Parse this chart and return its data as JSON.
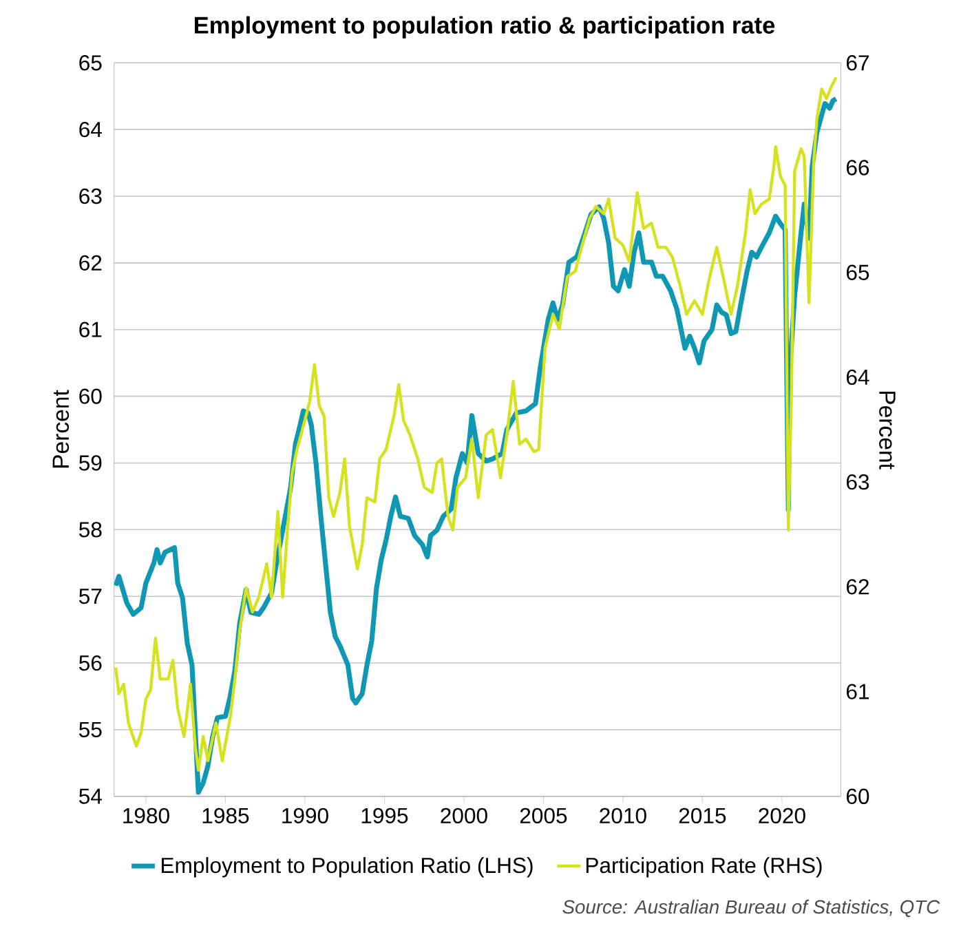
{
  "chart_data": {
    "type": "line",
    "title": "Employment to population ratio & participation rate",
    "ylabel": "Percent",
    "y2label": "Percent",
    "annotations": [
      "Source: Australian Bureau of Statistics, QTC"
    ],
    "xlim": [
      1978,
      2023.7
    ],
    "xticks": [
      1980,
      1985,
      1990,
      1995,
      2000,
      2005,
      2010,
      2015,
      2020
    ],
    "ylim": [
      54,
      65
    ],
    "yticks": [
      54,
      55,
      56,
      57,
      58,
      59,
      60,
      61,
      62,
      63,
      64,
      65
    ],
    "y2lim": [
      60,
      67
    ],
    "y2ticks": [
      60,
      61,
      62,
      63,
      64,
      65,
      66,
      67
    ],
    "grid": "y",
    "legend": "bottom",
    "marker": "none",
    "line_style": "solid",
    "series": [
      {
        "name": "Employment to Population Ratio (LHS)",
        "color": "#1097b4",
        "axis": "y",
        "x": [
          1978.1,
          1978.3,
          1978.8,
          1979.2,
          1979.7,
          1980.0,
          1980.5,
          1980.7,
          1980.9,
          1981.2,
          1981.8,
          1982.0,
          1982.3,
          1982.6,
          1982.9,
          1983.1,
          1983.3,
          1983.6,
          1983.9,
          1984.2,
          1984.5,
          1985.0,
          1985.3,
          1985.6,
          1985.9,
          1986.3,
          1986.6,
          1987.1,
          1987.4,
          1987.9,
          1988.2,
          1988.6,
          1989.1,
          1989.4,
          1989.7,
          1989.9,
          1990.2,
          1990.4,
          1990.7,
          1991.0,
          1991.3,
          1991.6,
          1991.9,
          1992.2,
          1992.7,
          1993.0,
          1993.2,
          1993.6,
          1993.9,
          1994.2,
          1994.5,
          1994.8,
          1995.1,
          1995.4,
          1995.7,
          1996.0,
          1996.5,
          1996.9,
          1997.4,
          1997.7,
          1997.9,
          1998.3,
          1998.7,
          1999.2,
          1999.5,
          1999.9,
          2000.2,
          2000.5,
          2000.9,
          2001.4,
          2001.8,
          2002.4,
          2002.7,
          2003.3,
          2003.9,
          2004.5,
          2004.8,
          2005.3,
          2005.6,
          2005.9,
          2006.2,
          2006.6,
          2007.1,
          2007.5,
          2008.0,
          2008.5,
          2008.8,
          2009.1,
          2009.4,
          2009.7,
          2010.1,
          2010.4,
          2010.7,
          2011.0,
          2011.3,
          2011.8,
          2012.1,
          2012.5,
          2013.0,
          2013.4,
          2013.9,
          2014.2,
          2014.5,
          2014.8,
          2015.1,
          2015.6,
          2015.9,
          2016.2,
          2016.5,
          2016.8,
          2017.1,
          2017.4,
          2017.8,
          2018.1,
          2018.4,
          2018.7,
          2019.2,
          2019.6,
          2019.9,
          2020.2,
          2020.4,
          2020.5,
          2020.8,
          2021.2,
          2021.4,
          2021.7,
          2021.9,
          2022.2,
          2022.7,
          2023.0,
          2023.2,
          2023.4
        ],
        "values": [
          57.16,
          57.3,
          56.9,
          56.73,
          56.83,
          57.2,
          57.5,
          57.7,
          57.5,
          57.66,
          57.73,
          57.2,
          56.98,
          56.3,
          55.97,
          55.0,
          54.06,
          54.2,
          54.46,
          54.9,
          55.18,
          55.2,
          55.5,
          55.9,
          56.6,
          57.1,
          56.76,
          56.73,
          56.83,
          57.05,
          57.48,
          57.99,
          58.63,
          59.28,
          59.57,
          59.78,
          59.75,
          59.57,
          58.99,
          58.2,
          57.48,
          56.76,
          56.4,
          56.26,
          55.97,
          55.47,
          55.4,
          55.54,
          55.97,
          56.33,
          57.12,
          57.55,
          57.84,
          58.2,
          58.49,
          58.2,
          58.17,
          57.91,
          57.77,
          57.59,
          57.91,
          57.99,
          58.2,
          58.31,
          58.78,
          59.14,
          59.0,
          59.71,
          59.14,
          59.03,
          59.06,
          59.14,
          59.5,
          59.75,
          59.78,
          59.89,
          60.43,
          61.15,
          61.4,
          61.15,
          61.37,
          62.01,
          62.09,
          62.37,
          62.73,
          62.84,
          62.66,
          62.3,
          61.65,
          61.58,
          61.9,
          61.65,
          62.16,
          62.45,
          62.01,
          62.01,
          61.8,
          61.8,
          61.58,
          61.3,
          60.72,
          60.9,
          60.72,
          60.5,
          60.83,
          61.0,
          61.37,
          61.26,
          61.22,
          60.94,
          60.97,
          61.37,
          61.87,
          62.16,
          62.09,
          62.23,
          62.45,
          62.7,
          62.59,
          62.5,
          58.3,
          60.43,
          61.51,
          62.45,
          62.88,
          62.37,
          63.45,
          63.96,
          64.39,
          64.32,
          64.43,
          64.46
        ]
      },
      {
        "name": "Participation Rate (RHS)",
        "color": "#d5e21d",
        "axis": "y2",
        "x": [
          1978.1,
          1978.3,
          1978.6,
          1978.9,
          1979.4,
          1979.7,
          1980.0,
          1980.3,
          1980.6,
          1980.9,
          1981.4,
          1981.7,
          1982.0,
          1982.4,
          1982.8,
          1983.1,
          1983.3,
          1983.6,
          1983.9,
          1984.4,
          1984.8,
          1985.3,
          1985.6,
          1985.9,
          1986.3,
          1986.7,
          1987.1,
          1987.6,
          1987.9,
          1988.3,
          1988.6,
          1988.9,
          1989.2,
          1989.5,
          1990.0,
          1990.3,
          1990.6,
          1990.9,
          1991.2,
          1991.5,
          1991.8,
          1992.2,
          1992.5,
          1992.8,
          1993.3,
          1993.6,
          1993.9,
          1994.4,
          1994.7,
          1995.1,
          1995.6,
          1995.9,
          1996.2,
          1996.6,
          1997.1,
          1997.5,
          1998.0,
          1998.3,
          1998.6,
          1999.0,
          1999.3,
          1999.6,
          2000.1,
          2000.5,
          2000.9,
          2001.4,
          2001.8,
          2002.3,
          2002.7,
          2003.1,
          2003.5,
          2003.9,
          2004.4,
          2004.7,
          2005.1,
          2005.6,
          2006.0,
          2006.5,
          2007.0,
          2007.4,
          2007.9,
          2008.3,
          2008.8,
          2009.1,
          2009.5,
          2010.0,
          2010.4,
          2010.9,
          2011.3,
          2011.8,
          2012.2,
          2012.7,
          2013.1,
          2013.6,
          2014.0,
          2014.5,
          2015.0,
          2015.4,
          2015.9,
          2016.3,
          2016.8,
          2017.2,
          2017.7,
          2018.0,
          2018.3,
          2018.7,
          2019.2,
          2019.5,
          2019.6,
          2019.9,
          2020.2,
          2020.4,
          2020.6,
          2020.8,
          2021.2,
          2021.4,
          2021.7,
          2022.0,
          2022.2,
          2022.5,
          2022.8,
          2023.1,
          2023.4
        ],
        "values": [
          61.23,
          60.98,
          61.07,
          60.7,
          60.48,
          60.61,
          60.93,
          61.02,
          61.51,
          61.12,
          61.12,
          61.3,
          60.84,
          60.57,
          61.07,
          60.48,
          60.25,
          60.57,
          60.34,
          60.7,
          60.34,
          60.75,
          61.12,
          61.58,
          61.99,
          61.76,
          61.9,
          62.22,
          61.9,
          62.72,
          61.9,
          62.54,
          63.09,
          63.31,
          63.59,
          63.77,
          64.12,
          63.73,
          63.63,
          62.85,
          62.67,
          62.9,
          63.22,
          62.58,
          62.17,
          62.4,
          62.85,
          62.81,
          63.22,
          63.31,
          63.63,
          63.93,
          63.59,
          63.45,
          63.22,
          62.95,
          62.9,
          63.18,
          63.22,
          62.67,
          62.54,
          62.95,
          63.04,
          63.41,
          62.85,
          63.45,
          63.5,
          63.04,
          63.45,
          63.96,
          63.36,
          63.41,
          63.29,
          63.31,
          64.28,
          64.6,
          64.46,
          64.96,
          65.01,
          65.24,
          65.51,
          65.63,
          65.56,
          65.7,
          65.33,
          65.26,
          65.1,
          65.76,
          65.42,
          65.47,
          65.24,
          65.24,
          65.15,
          64.87,
          64.6,
          64.73,
          64.6,
          64.92,
          65.24,
          64.96,
          64.6,
          64.87,
          65.37,
          65.79,
          65.56,
          65.65,
          65.7,
          66.02,
          66.2,
          65.92,
          65.83,
          62.54,
          63.87,
          65.97,
          66.18,
          66.11,
          64.71,
          66.06,
          66.47,
          66.75,
          66.66,
          66.77,
          66.86
        ]
      }
    ]
  }
}
